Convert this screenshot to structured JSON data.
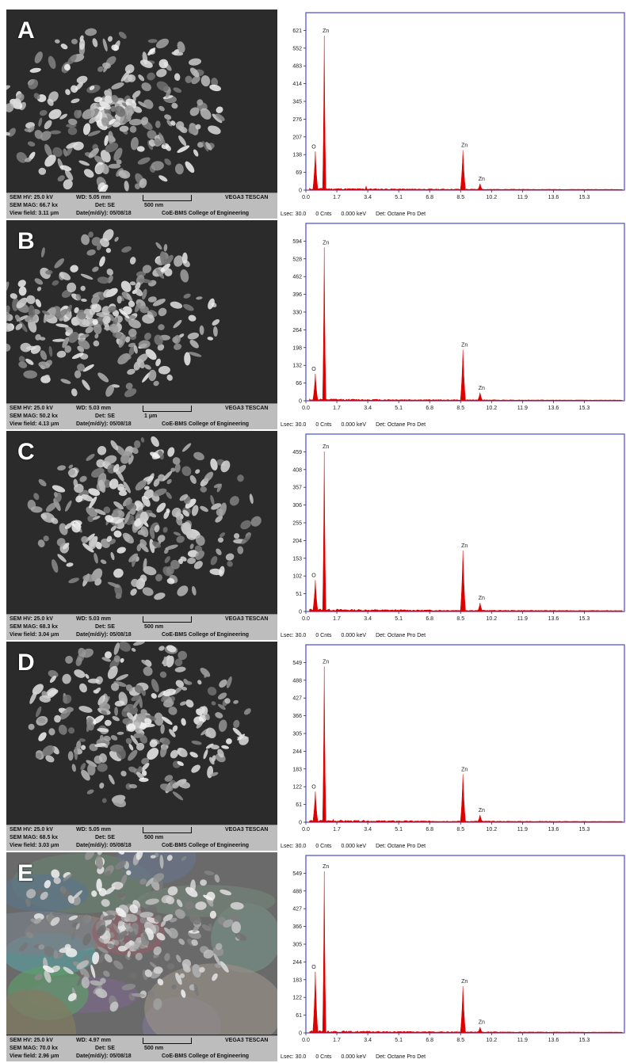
{
  "panels": [
    {
      "letter": "A",
      "sem": {
        "hv": "SEM HV: 25.0 kV",
        "wd": "WD: 5.05 mm",
        "brand": "VEGA3 TESCAN",
        "mag": "SEM MAG: 66.7 kx",
        "det": "Det: SE",
        "scale": "500 nm",
        "field": "View field: 3.11 μm",
        "date": "Date(m/d/y): 05/08/18",
        "college": "CoE-BMS College of Engineering"
      },
      "eds": {
        "lsec": "Lsec: 30.0",
        "cnts": "0 Cnts",
        "kev": "0.000 keV",
        "det": "Det: Octane Pro Det"
      }
    },
    {
      "letter": "B",
      "sem": {
        "hv": "SEM HV: 25.0 kV",
        "wd": "WD: 5.03 mm",
        "brand": "VEGA3 TESCAN",
        "mag": "SEM MAG: 50.2 kx",
        "det": "Det: SE",
        "scale": "1 μm",
        "field": "View field: 4.13 μm",
        "date": "Date(m/d/y): 05/08/18",
        "college": "CoE-BMS College of Engineering"
      },
      "eds": {
        "lsec": "Lsec: 30.0",
        "cnts": "0 Cnts",
        "kev": "0.000 keV",
        "det": "Det: Octane Pro Det"
      }
    },
    {
      "letter": "C",
      "sem": {
        "hv": "SEM HV: 25.0 kV",
        "wd": "WD: 5.03 mm",
        "brand": "VEGA3 TESCAN",
        "mag": "SEM MAG: 68.3 kx",
        "det": "Det: SE",
        "scale": "500 nm",
        "field": "View field: 3.04 μm",
        "date": "Date(m/d/y): 05/08/18",
        "college": "CoE-BMS College of Engineering"
      },
      "eds": {
        "lsec": "Lsec: 30.0",
        "cnts": "0 Cnts",
        "kev": "0.000 keV",
        "det": "Det: Octane Pro Det"
      }
    },
    {
      "letter": "D",
      "sem": {
        "hv": "SEM HV: 25.0 kV",
        "wd": "WD: 5.05 mm",
        "brand": "VEGA3 TESCAN",
        "mag": "SEM MAG: 68.5 kx",
        "det": "Det: SE",
        "scale": "500 nm",
        "field": "View field: 3.03 μm",
        "date": "Date(m/d/y): 05/08/18",
        "college": "CoE-BMS College of Engineering"
      },
      "eds": {
        "lsec": "Lsec: 30.0",
        "cnts": "0 Cnts",
        "kev": "0.000 keV",
        "det": "Det: Octane Pro Det"
      }
    },
    {
      "letter": "E",
      "sem": {
        "hv": "SEM HV: 25.0 kV",
        "wd": "WD: 4.97 mm",
        "brand": "VEGA3 TESCAN",
        "mag": "SEM MAG: 70.0 kx",
        "det": "Det: SE",
        "scale": "500 nm",
        "field": "View field: 2.96 μm",
        "date": "Date(m/d/y): 05/08/18",
        "college": "CoE-BMS College of Engineering"
      },
      "eds": {
        "lsec": "Lsec: 30.0",
        "cnts": "0 Cnts",
        "kev": "0.000 keV",
        "det": "Det: Octane Pro Det"
      }
    }
  ],
  "chart_data": [
    {
      "type": "area",
      "panel": "A",
      "x_ticks": [
        "0.0",
        "1.7",
        "3.4",
        "5.1",
        "6.8",
        "8.5",
        "10.2",
        "11.9",
        "13.6",
        "15.3"
      ],
      "y_ticks": [
        "0",
        "69",
        "138",
        "207",
        "276",
        "345",
        "414",
        "483",
        "552",
        "621"
      ],
      "xlim": [
        0,
        17.5
      ],
      "ylim": [
        0,
        690
      ],
      "peaks": [
        {
          "label": "O",
          "x": 0.52,
          "y": 150
        },
        {
          "label": "Zn",
          "x": 1.01,
          "y": 600
        },
        {
          "label": "Zn",
          "x": 8.63,
          "y": 155
        },
        {
          "label": "Zn",
          "x": 9.57,
          "y": 25
        }
      ],
      "minor_peaks": [
        {
          "x": 3.31,
          "y": 18
        }
      ],
      "color": "#dd0000"
    },
    {
      "type": "area",
      "panel": "B",
      "x_ticks": [
        "0.0",
        "1.7",
        "3.4",
        "5.1",
        "6.8",
        "8.5",
        "10.2",
        "11.9",
        "13.6",
        "15.3"
      ],
      "y_ticks": [
        "0",
        "66",
        "132",
        "198",
        "264",
        "330",
        "396",
        "462",
        "528",
        "594"
      ],
      "xlim": [
        0,
        17.5
      ],
      "ylim": [
        0,
        660
      ],
      "peaks": [
        {
          "label": "O",
          "x": 0.52,
          "y": 100
        },
        {
          "label": "Zn",
          "x": 1.01,
          "y": 570
        },
        {
          "label": "Zn",
          "x": 8.63,
          "y": 190
        },
        {
          "label": "Zn",
          "x": 9.57,
          "y": 30
        }
      ],
      "minor_peaks": [],
      "color": "#dd0000"
    },
    {
      "type": "area",
      "panel": "C",
      "x_ticks": [
        "0.0",
        "1.7",
        "3.4",
        "5.1",
        "6.8",
        "8.5",
        "10.2",
        "11.9",
        "13.6",
        "15.3"
      ],
      "y_ticks": [
        "0",
        "51",
        "102",
        "153",
        "204",
        "255",
        "306",
        "357",
        "408",
        "459"
      ],
      "xlim": [
        0,
        17.5
      ],
      "ylim": [
        0,
        510
      ],
      "peaks": [
        {
          "label": "O",
          "x": 0.52,
          "y": 90
        },
        {
          "label": "Zn",
          "x": 1.01,
          "y": 460
        },
        {
          "label": "Zn",
          "x": 8.63,
          "y": 175
        },
        {
          "label": "Zn",
          "x": 9.57,
          "y": 25
        }
      ],
      "minor_peaks": [],
      "color": "#dd0000"
    },
    {
      "type": "area",
      "panel": "D",
      "x_ticks": [
        "0.0",
        "1.7",
        "3.4",
        "5.1",
        "6.8",
        "8.5",
        "10.2",
        "11.9",
        "13.6",
        "15.3"
      ],
      "y_ticks": [
        "0",
        "61",
        "122",
        "183",
        "244",
        "305",
        "366",
        "427",
        "488",
        "549"
      ],
      "xlim": [
        0,
        17.5
      ],
      "ylim": [
        0,
        610
      ],
      "peaks": [
        {
          "label": "O",
          "x": 0.52,
          "y": 105
        },
        {
          "label": "Zn",
          "x": 1.01,
          "y": 535
        },
        {
          "label": "Zn",
          "x": 8.63,
          "y": 165
        },
        {
          "label": "Zn",
          "x": 9.57,
          "y": 25
        }
      ],
      "minor_peaks": [
        {
          "x": 1.5,
          "y": 12
        }
      ],
      "color": "#dd0000"
    },
    {
      "type": "area",
      "panel": "E",
      "x_ticks": [
        "0.0",
        "1.7",
        "3.4",
        "5.1",
        "6.8",
        "8.5",
        "10.2",
        "11.9",
        "13.6",
        "15.3"
      ],
      "y_ticks": [
        "0",
        "61",
        "122",
        "183",
        "244",
        "305",
        "366",
        "427",
        "488",
        "549"
      ],
      "xlim": [
        0,
        17.5
      ],
      "ylim": [
        0,
        610
      ],
      "peaks": [
        {
          "label": "O",
          "x": 0.52,
          "y": 210
        },
        {
          "label": "Zn",
          "x": 1.01,
          "y": 555
        },
        {
          "label": "Zn",
          "x": 8.63,
          "y": 160
        },
        {
          "label": "Zn",
          "x": 9.57,
          "y": 20
        }
      ],
      "minor_peaks": [],
      "color": "#dd0000"
    }
  ]
}
